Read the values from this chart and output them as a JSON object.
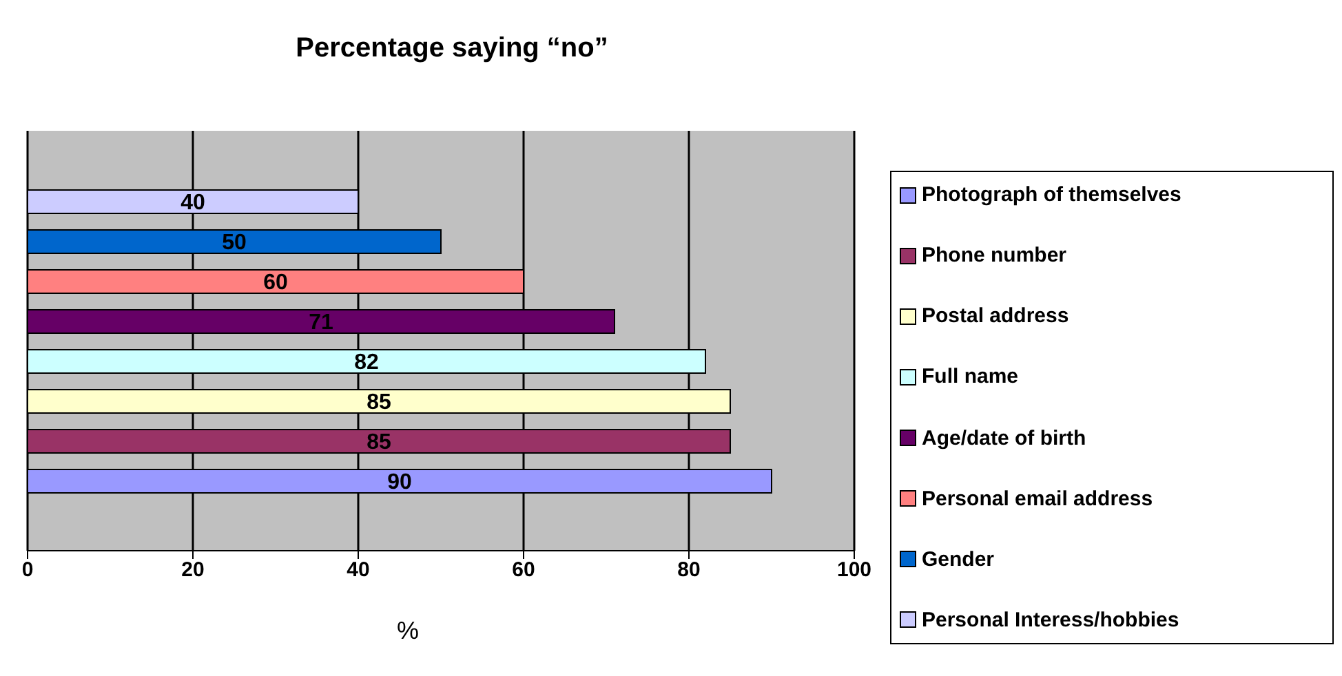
{
  "chart_data": {
    "type": "bar",
    "orientation": "horizontal",
    "title": "Percentage saying “no”",
    "xlabel": "%",
    "categories": [
      null
    ],
    "series": [
      {
        "name": "Photograph of themselves",
        "color": "#9999ff",
        "values": [
          90
        ]
      },
      {
        "name": "Phone number",
        "color": "#993366",
        "values": [
          85
        ]
      },
      {
        "name": "Postal address",
        "color": "#ffffcc",
        "values": [
          85
        ]
      },
      {
        "name": "Full name",
        "color": "#ccffff",
        "values": [
          82
        ]
      },
      {
        "name": "Age/date of birth",
        "color": "#660066",
        "values": [
          71
        ]
      },
      {
        "name": "Personal email address",
        "color": "#ff8080",
        "values": [
          60
        ]
      },
      {
        "name": "Gender",
        "color": "#0066cc",
        "values": [
          50
        ]
      },
      {
        "name": "Personal Interess/hobbies",
        "color": "#ccccff",
        "values": [
          40
        ]
      }
    ],
    "xlim": [
      0,
      100
    ],
    "xticks": [
      0,
      20,
      40,
      60,
      80,
      100
    ],
    "grid": "x",
    "legend": "right",
    "tick_labels": "x",
    "data_labels": true
  }
}
